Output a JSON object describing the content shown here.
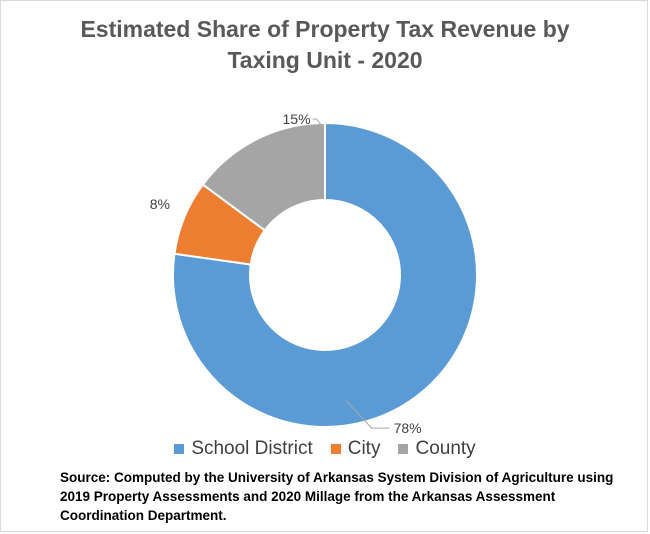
{
  "chart_data": {
    "type": "pie",
    "variant": "donut",
    "title_lines": [
      "Estimated Share of Property Tax Revenue by",
      "Taxing Unit - 2020"
    ],
    "categories": [
      "School District",
      "City",
      "County"
    ],
    "values": [
      78,
      8,
      15
    ],
    "data_labels": [
      "78%",
      "8%",
      "15%"
    ],
    "colors": [
      "#5b9bd5",
      "#ed7d31",
      "#a5a5a5"
    ],
    "legend_placement": "bottom"
  },
  "source": {
    "lines": [
      "Source: Computed by the University of Arkansas System Division of Agriculture using",
      " 2019 Property Assessments and 2020 Millage from the Arkansas Assessment",
      "Coordination Department."
    ]
  }
}
